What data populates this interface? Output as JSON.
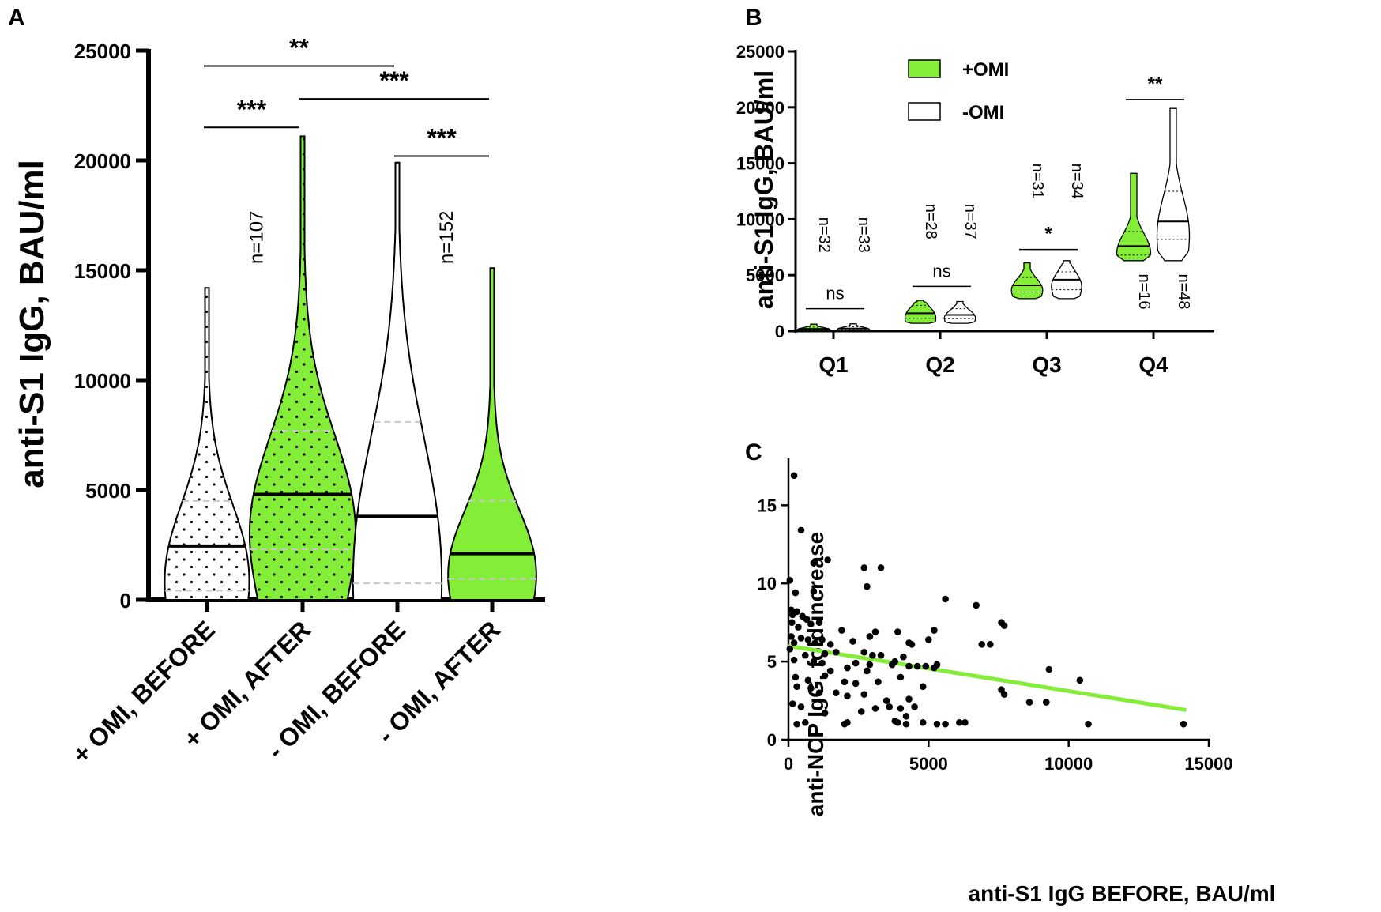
{
  "panels": {
    "a": "A",
    "b": "B",
    "c": "C"
  },
  "colors": {
    "green": "#84ED38",
    "white": "#ffffff",
    "black": "#000000",
    "quartile_gray": "#bbbbbb",
    "regression": "#84ED38"
  },
  "chart_data": [
    {
      "type": "violin",
      "panel": "A",
      "title": "",
      "ylabel": "anti-S1 IgG, BAU/ml",
      "ylim": [
        0,
        25000
      ],
      "yticks": [
        0,
        5000,
        10000,
        15000,
        20000,
        25000
      ],
      "ytick_labels": [
        "0",
        "5000",
        "10000",
        "15000",
        "20000",
        "25000"
      ],
      "groups": [
        {
          "label": "+ OMI, BEFORE",
          "fill": "white",
          "dotted": true,
          "median": 2450,
          "q1": 420,
          "q3": 4500,
          "max": 14200
        },
        {
          "label": "+ OMI, AFTER",
          "fill": "green",
          "dotted": true,
          "median": 4800,
          "q1": 2300,
          "q3": 7700,
          "max": 21100
        },
        {
          "label": "- OMI, BEFORE",
          "fill": "white",
          "dotted": false,
          "median": 3800,
          "q1": 750,
          "q3": 8100,
          "max": 19900
        },
        {
          "label": "- OMI, AFTER",
          "fill": "green",
          "dotted": false,
          "median": 2100,
          "q1": 950,
          "q3": 4500,
          "max": 15100
        }
      ],
      "n_labels": [
        {
          "text": "n=107",
          "between": [
            0,
            1
          ],
          "value": 16500
        },
        {
          "text": "n=152",
          "between": [
            2,
            3
          ],
          "value": 16500
        }
      ],
      "significance": [
        {
          "from": 0,
          "to": 2,
          "label": "**",
          "level": 24300
        },
        {
          "from": 0,
          "to": 1,
          "label": "***",
          "level": 21500
        },
        {
          "from": 1,
          "to": 3,
          "label": "***",
          "level": 22800
        },
        {
          "from": 2,
          "to": 3,
          "label": "***",
          "level": 20200
        }
      ]
    },
    {
      "type": "violin",
      "panel": "B",
      "ylabel": "anti-S1 IgG, BAU/ml",
      "ylim": [
        0,
        25000
      ],
      "yticks": [
        0,
        5000,
        10000,
        15000,
        20000,
        25000
      ],
      "ytick_labels": [
        "0",
        "5000",
        "10000",
        "15000",
        "20000",
        "25000"
      ],
      "categories": [
        "Q1",
        "Q2",
        "Q3",
        "Q4"
      ],
      "legend": [
        {
          "label": "+OMI",
          "fill": "green"
        },
        {
          "label": "-OMI",
          "fill": "white"
        }
      ],
      "legend_position": "top-left",
      "series": [
        {
          "name": "+OMI",
          "fill": "green",
          "groups": [
            {
              "min": 50,
              "max": 620,
              "median": 200,
              "q1": 100,
              "q3": 350,
              "n": "n=32"
            },
            {
              "min": 700,
              "max": 2750,
              "median": 1600,
              "q1": 1150,
              "q3": 2300,
              "n": "n=28"
            },
            {
              "min": 2900,
              "max": 6100,
              "median": 4100,
              "q1": 3500,
              "q3": 4800,
              "n": "n=31"
            },
            {
              "min": 6300,
              "max": 14100,
              "median": 7600,
              "q1": 6800,
              "q3": 8900,
              "n": "n=16"
            }
          ]
        },
        {
          "name": "-OMI",
          "fill": "white",
          "groups": [
            {
              "min": 50,
              "max": 650,
              "median": 230,
              "q1": 120,
              "q3": 380,
              "n": "n=33"
            },
            {
              "min": 700,
              "max": 2650,
              "median": 1450,
              "q1": 1100,
              "q3": 2000,
              "n": "n=37"
            },
            {
              "min": 2900,
              "max": 6300,
              "median": 4600,
              "q1": 3700,
              "q3": 5300,
              "n": "n=34"
            },
            {
              "min": 6300,
              "max": 19900,
              "median": 9800,
              "q1": 8200,
              "q3": 12500,
              "n": "n=48"
            }
          ]
        }
      ],
      "significance": [
        {
          "category": "Q1",
          "label": "ns",
          "level": 2000
        },
        {
          "category": "Q2",
          "label": "ns",
          "level": 4000
        },
        {
          "category": "Q3",
          "label": "*",
          "level": 7300
        },
        {
          "category": "Q4",
          "label": "**",
          "level": 20700
        }
      ]
    },
    {
      "type": "scatter",
      "panel": "C",
      "xlabel": "anti-S1 IgG BEFORE, BAU/ml",
      "ylabel": "anti-NCP IgG, fold increase",
      "xlim": [
        0,
        15000
      ],
      "ylim": [
        0,
        18
      ],
      "xticks": [
        0,
        5000,
        10000,
        15000
      ],
      "xtick_labels": [
        "0",
        "5000",
        "10000",
        "15000"
      ],
      "yticks": [
        0,
        5,
        10,
        15
      ],
      "ytick_labels": [
        "0",
        "5",
        "10",
        "15"
      ],
      "regression": {
        "x": [
          0,
          14200
        ],
        "y": [
          6.0,
          1.9
        ]
      },
      "points": [
        [
          200,
          16.9
        ],
        [
          450,
          13.4
        ],
        [
          50,
          10.2
        ],
        [
          900,
          11.3
        ],
        [
          1400,
          11.5
        ],
        [
          2700,
          11.0
        ],
        [
          3300,
          11.0
        ],
        [
          6700,
          8.6
        ],
        [
          2800,
          9.8
        ],
        [
          250,
          9.4
        ],
        [
          900,
          9.5
        ],
        [
          100,
          8.3
        ],
        [
          150,
          8.0
        ],
        [
          300,
          8.2
        ],
        [
          500,
          7.9
        ],
        [
          650,
          7.7
        ],
        [
          800,
          7.4
        ],
        [
          120,
          7.5
        ],
        [
          350,
          7.2
        ],
        [
          1100,
          7.5
        ],
        [
          1900,
          7.0
        ],
        [
          2900,
          6.6
        ],
        [
          3100,
          6.9
        ],
        [
          3900,
          6.9
        ],
        [
          4400,
          6.1
        ],
        [
          5200,
          7.0
        ],
        [
          7600,
          7.5
        ],
        [
          7700,
          7.3
        ],
        [
          6900,
          6.1
        ],
        [
          7200,
          6.1
        ],
        [
          100,
          6.6
        ],
        [
          200,
          6.2
        ],
        [
          450,
          6.5
        ],
        [
          700,
          6.4
        ],
        [
          950,
          6.2
        ],
        [
          1200,
          6.4
        ],
        [
          1500,
          6.1
        ],
        [
          2300,
          6.3
        ],
        [
          3000,
          5.4
        ],
        [
          3300,
          5.4
        ],
        [
          4100,
          5.3
        ],
        [
          4300,
          6.2
        ],
        [
          5000,
          6.4
        ],
        [
          1300,
          5.5
        ],
        [
          1700,
          5.6
        ],
        [
          2700,
          5.6
        ],
        [
          3800,
          5.0
        ],
        [
          4600,
          4.7
        ],
        [
          4900,
          4.7
        ],
        [
          5300,
          4.8
        ],
        [
          5200,
          4.6
        ],
        [
          4300,
          4.7
        ],
        [
          3700,
          4.8
        ],
        [
          2900,
          4.8
        ],
        [
          2400,
          4.9
        ],
        [
          2100,
          4.6
        ],
        [
          2800,
          4.4
        ],
        [
          50,
          5.8
        ],
        [
          200,
          5.1
        ],
        [
          600,
          5.4
        ],
        [
          900,
          5.0
        ],
        [
          1200,
          4.9
        ],
        [
          1500,
          4.4
        ],
        [
          250,
          4.0
        ],
        [
          700,
          3.8
        ],
        [
          1300,
          4.1
        ],
        [
          2000,
          3.7
        ],
        [
          2400,
          3.6
        ],
        [
          3200,
          3.7
        ],
        [
          4000,
          4.0
        ],
        [
          4800,
          3.4
        ],
        [
          5600,
          9.0
        ],
        [
          9300,
          4.5
        ],
        [
          10400,
          3.8
        ],
        [
          7600,
          3.2
        ],
        [
          7700,
          2.9
        ],
        [
          8600,
          2.4
        ],
        [
          9200,
          2.4
        ],
        [
          300,
          3.4
        ],
        [
          800,
          3.3
        ],
        [
          1100,
          3.0
        ],
        [
          1700,
          3.0
        ],
        [
          2100,
          2.8
        ],
        [
          2700,
          2.9
        ],
        [
          3500,
          2.5
        ],
        [
          4300,
          2.6
        ],
        [
          4500,
          2.1
        ],
        [
          4200,
          1.5
        ],
        [
          3600,
          2.1
        ],
        [
          3100,
          2.0
        ],
        [
          2600,
          1.8
        ],
        [
          2100,
          1.1
        ],
        [
          2000,
          1.0
        ],
        [
          1300,
          1.7
        ],
        [
          150,
          2.3
        ],
        [
          450,
          2.1
        ],
        [
          600,
          1.1
        ],
        [
          300,
          1.0
        ],
        [
          3800,
          1.2
        ],
        [
          3900,
          1.1
        ],
        [
          4800,
          1.1
        ],
        [
          5300,
          1.0
        ],
        [
          6100,
          1.1
        ],
        [
          6300,
          1.1
        ],
        [
          5600,
          1.0
        ],
        [
          10700,
          1.0
        ],
        [
          14100,
          1.0
        ],
        [
          4000,
          2.0
        ],
        [
          4200,
          1.0
        ]
      ]
    }
  ]
}
